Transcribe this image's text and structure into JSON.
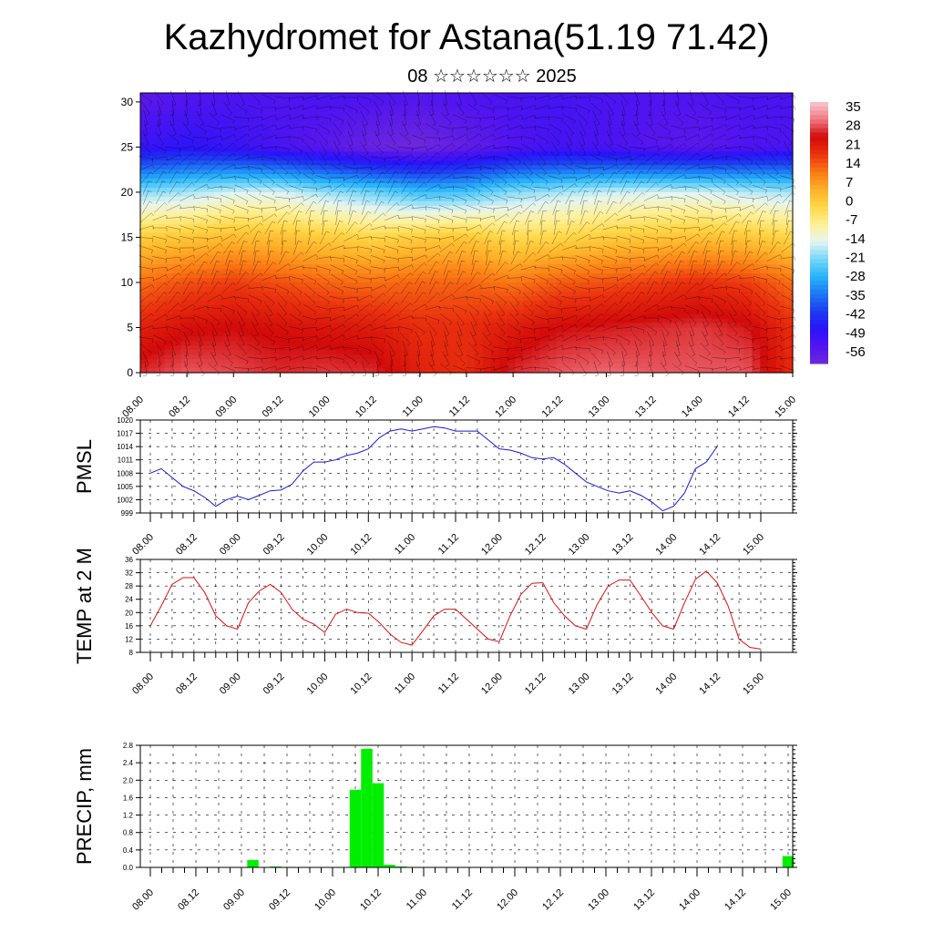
{
  "title": "Kazhydromet for Astana(51.19 71.42)",
  "subtitle": "08 ☆☆☆☆☆☆ 2025",
  "colors": {
    "pmsl_line": "#1a1ad6",
    "temp_line": "#e01010",
    "precip_bar": "#00ee00",
    "grid": "#000000"
  },
  "time_labels": [
    "08.00",
    "08.12",
    "09.00",
    "09.12",
    "10.00",
    "10.12",
    "11.00",
    "11.12",
    "12.00",
    "12.12",
    "13.00",
    "13.12",
    "14.00",
    "14.12",
    "15.00"
  ],
  "chart_data": [
    {
      "type": "heatmap",
      "name": "upper-air-temperature-wind",
      "ylim": [
        0,
        31
      ],
      "y_ticks": [
        0,
        5,
        10,
        15,
        20,
        25,
        30
      ],
      "colorbar_labels": [
        "35",
        "28",
        "21",
        "14",
        "7",
        "0",
        "-7",
        "-14",
        "-21",
        "-28",
        "-35",
        "-42",
        "-49",
        "-56"
      ],
      "colorbar_range": [
        -63,
        42
      ],
      "levels": [
        0,
        5,
        10,
        15,
        20,
        25,
        30
      ],
      "times": [
        "08.00",
        "08.12",
        "09.00",
        "09.12",
        "10.00",
        "10.12",
        "11.00",
        "11.12",
        "12.00",
        "12.12",
        "13.00",
        "13.12",
        "14.00",
        "14.12",
        "15.00"
      ],
      "values": [
        [
          30,
          33,
          32,
          30,
          31,
          30,
          24,
          22,
          30,
          33,
          34,
          33,
          33,
          33,
          22
        ],
        [
          24,
          27,
          28,
          27,
          26,
          25,
          22,
          22,
          25,
          28,
          29,
          30,
          31,
          29,
          22
        ],
        [
          15,
          18,
          20,
          18,
          16,
          15,
          16,
          16,
          14,
          17,
          18,
          20,
          22,
          20,
          15
        ],
        [
          2,
          3,
          5,
          4,
          2,
          0,
          2,
          3,
          -1,
          0,
          2,
          3,
          4,
          3,
          0
        ],
        [
          -20,
          -18,
          -15,
          -15,
          -19,
          -22,
          -26,
          -25,
          -20,
          -18,
          -16,
          -15,
          -15,
          -17,
          -18
        ],
        [
          -52,
          -50,
          -52,
          -55,
          -58,
          -62,
          -63,
          -60,
          -56,
          -54,
          -55,
          -57,
          -58,
          -56,
          -55
        ],
        [
          -58,
          -56,
          -55,
          -56,
          -55,
          -56,
          -57,
          -56,
          -55,
          -54,
          -55,
          -56,
          -56,
          -55,
          -55
        ]
      ]
    },
    {
      "type": "line",
      "name": "PMSL",
      "ylabel": "PMSL",
      "ylim": [
        999,
        1020
      ],
      "y_ticks": [
        999,
        1002,
        1005,
        1008,
        1011,
        1014,
        1017,
        1020
      ],
      "x_start": "08.00",
      "step_hours": 3,
      "values": [
        1008,
        1009,
        1007,
        1005,
        1004,
        1002.5,
        1000.5,
        1002,
        1002.8,
        1002,
        1003,
        1004,
        1004.2,
        1005.5,
        1008.5,
        1010.5,
        1010.5,
        1011,
        1012,
        1012.5,
        1013.5,
        1016,
        1017.5,
        1018,
        1017.5,
        1018,
        1018.5,
        1018.2,
        1017.5,
        1017.5,
        1017.5,
        1015.5,
        1013.5,
        1013.2,
        1012.5,
        1011.5,
        1011.2,
        1011.5,
        1010,
        1008,
        1006,
        1005,
        1004,
        1003.5,
        1004,
        1003,
        1001.5,
        999.5,
        1000.5,
        1003.5,
        1009,
        1010.5,
        1014
      ]
    },
    {
      "type": "line",
      "name": "TEMP at 2 M",
      "ylabel": "TEMP at 2 M",
      "ylim": [
        8,
        36
      ],
      "y_ticks": [
        8,
        12,
        16,
        20,
        24,
        28,
        32,
        36
      ],
      "x_start": "08.00",
      "step_hours": 3,
      "values": [
        16,
        22,
        28.5,
        30.5,
        30.5,
        26,
        19,
        16,
        15,
        23,
        26.5,
        28.5,
        26,
        21,
        18,
        16.5,
        14,
        19.5,
        21,
        20,
        19.8,
        17,
        13.5,
        11,
        10.2,
        14.5,
        19,
        21,
        21,
        18,
        15,
        12,
        11.2,
        19,
        25.5,
        28.8,
        29,
        23,
        19,
        16,
        15,
        22.5,
        28,
        29.8,
        29.8,
        25,
        20,
        16,
        15,
        23,
        30,
        32.5,
        29,
        22,
        12,
        9.5,
        9
      ]
    },
    {
      "type": "bar",
      "name": "PRECIP, mm",
      "ylabel": "PRECIP, mm",
      "ylim": [
        0,
        2.8
      ],
      "y_ticks": [
        0.0,
        0.4,
        0.8,
        1.2,
        1.6,
        2.0,
        2.4,
        2.8
      ],
      "x_start": "08.00",
      "step_hours": 3,
      "values": [
        0,
        0,
        0,
        0,
        0,
        0,
        0,
        0,
        0,
        0.17,
        0,
        0.02,
        0,
        0,
        0,
        0,
        0,
        0,
        1.78,
        2.72,
        1.93,
        0.06,
        0.02,
        0,
        0,
        0,
        0,
        0,
        0,
        0,
        0,
        0,
        0,
        0,
        0,
        0,
        0,
        0,
        0,
        0,
        0,
        0,
        0,
        0,
        0,
        0,
        0,
        0,
        0,
        0,
        0,
        0,
        0,
        0,
        0,
        0,
        0.26
      ]
    }
  ]
}
